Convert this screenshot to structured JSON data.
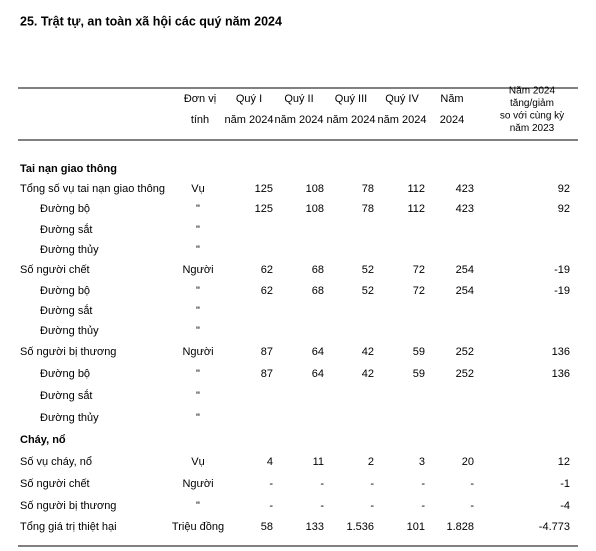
{
  "title": "25. Trật tự, an toàn xã hội các quý năm 2024",
  "header": {
    "columns": [
      [
        "Đơn vị",
        "tính"
      ],
      [
        "Quý I",
        "năm 2024"
      ],
      [
        "Quý II",
        "năm 2024"
      ],
      [
        "Quý III",
        "năm 2024"
      ],
      [
        "Quý IV",
        "năm 2024"
      ],
      [
        "Năm",
        "2024"
      ],
      [
        "Năm 2024",
        "tăng/giảm",
        "so với cùng kỳ",
        "năm 2023"
      ]
    ]
  },
  "sections": [
    {
      "title": "Tai nạn giao thông",
      "rows": [
        {
          "label": "Tổng số vụ tai nạn giao thông",
          "unit": "Vụ",
          "values": [
            "125",
            "108",
            "78",
            "112",
            "423",
            "92"
          ],
          "sub": [
            {
              "label": "Đường bộ",
              "unit": "\"",
              "values": [
                "125",
                "108",
                "78",
                "112",
                "423",
                "92"
              ]
            },
            {
              "label": "Đường sắt",
              "unit": "\""
            },
            {
              "label": "Đường thủy",
              "unit": "\""
            }
          ]
        },
        {
          "label": "Số người chết",
          "unit": "Người",
          "values": [
            "62",
            "68",
            "52",
            "72",
            "254",
            "-19"
          ],
          "sub": [
            {
              "label": "Đường bộ",
              "unit": "\"",
              "values": [
                "62",
                "68",
                "52",
                "72",
                "254",
                "-19"
              ]
            },
            {
              "label": "Đường sắt",
              "unit": "\""
            },
            {
              "label": "Đường thủy",
              "unit": "\""
            }
          ]
        },
        {
          "label": "Số người bị thương",
          "unit": "Người",
          "values": [
            "87",
            "64",
            "42",
            "59",
            "252",
            "136"
          ],
          "sub": [
            {
              "label": "Đường bộ",
              "unit": "\"",
              "values": [
                "87",
                "64",
                "42",
                "59",
                "252",
                "136"
              ]
            },
            {
              "label": "Đường sắt",
              "unit": "\""
            },
            {
              "label": "Đường thủy",
              "unit": "\""
            }
          ]
        }
      ]
    },
    {
      "title": "Cháy, nổ",
      "rows": [
        {
          "label": "Số vụ cháy, nổ",
          "unit": "Vụ",
          "values": [
            "4",
            "11",
            "2",
            "3",
            "20",
            "12"
          ]
        },
        {
          "label": "Số người chết",
          "unit": "Người",
          "values": [
            "-",
            "-",
            "-",
            "-",
            "-",
            "-1"
          ]
        },
        {
          "label": "Số người bị thương",
          "unit": "\"",
          "values": [
            "-",
            "-",
            "-",
            "-",
            "-",
            "-4"
          ]
        },
        {
          "label": "Tổng giá trị thiệt hại",
          "unit": "Triệu đồng",
          "values": [
            "58",
            "133",
            "1.536",
            "101",
            "1.828",
            "-4.773"
          ]
        }
      ]
    }
  ]
}
